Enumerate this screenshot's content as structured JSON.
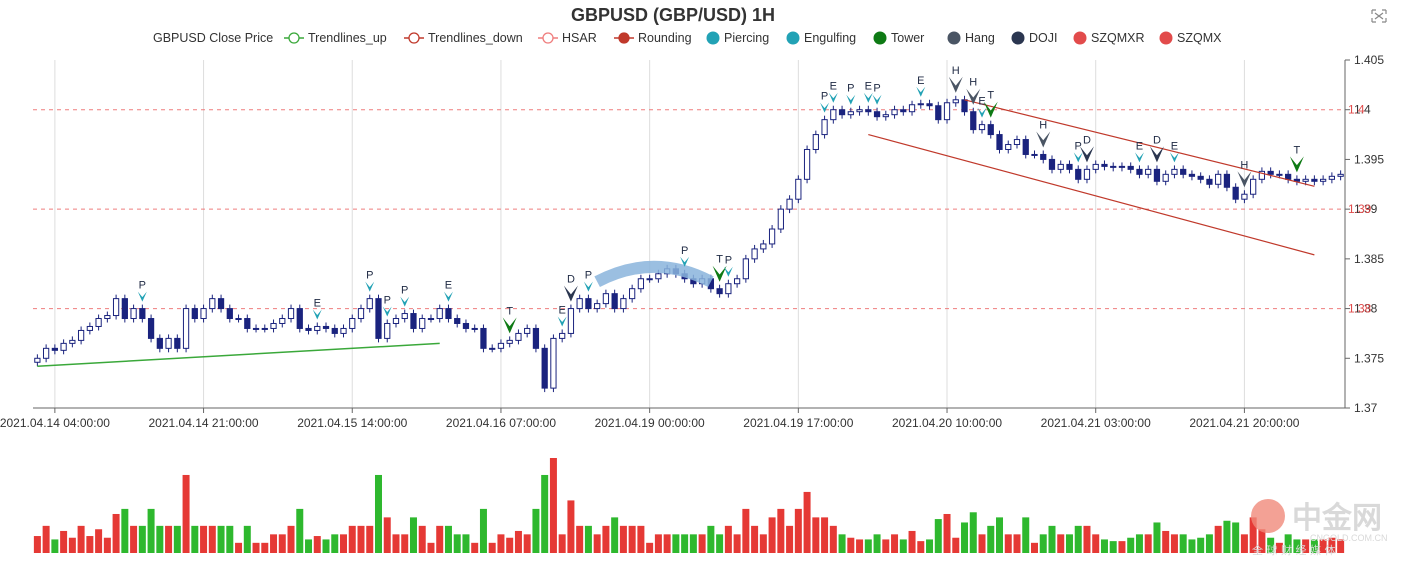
{
  "chart_data": {
    "type": "candlestick",
    "title": "GBPUSD (GBP/USD) 1H",
    "legend": {
      "placement": "top-center",
      "items": [
        {
          "label": "GBPUSD Close Price",
          "symbol": "none",
          "color": "#333333"
        },
        {
          "label": "Trendlines_up",
          "symbol": "line-circle",
          "color": "#3aa83a"
        },
        {
          "label": "Trendlines_down",
          "symbol": "line-circle",
          "color": "#c0392b"
        },
        {
          "label": "HSAR",
          "symbol": "line-circle",
          "color": "#ef7d7d"
        },
        {
          "label": "Rounding",
          "symbol": "line-dot",
          "color": "#c0392b"
        },
        {
          "label": "Piercing",
          "symbol": "dot",
          "color": "#22a2b5"
        },
        {
          "label": "Engulfing",
          "symbol": "dot",
          "color": "#22a2b5"
        },
        {
          "label": "Tower",
          "symbol": "dot",
          "color": "#0e7a14"
        },
        {
          "label": "Hang",
          "symbol": "dot",
          "color": "#4a5564"
        },
        {
          "label": "DOJI",
          "symbol": "dot",
          "color": "#2b3650"
        },
        {
          "label": "SZQMXR",
          "symbol": "dot",
          "color": "#e24b4b"
        },
        {
          "label": "SZQMX",
          "symbol": "dot",
          "color": "#e24b4b"
        }
      ]
    },
    "x_tick_labels": [
      "2021.04.14 04:00:00",
      "2021.04.14 21:00:00",
      "2021.04.15 14:00:00",
      "2021.04.16 07:00:00",
      "2021.04.19 00:00:00",
      "2021.04.19 17:00:00",
      "2021.04.20 10:00:00",
      "2021.04.21 03:00:00",
      "2021.04.21 20:00:00"
    ],
    "x_tick_index": [
      2,
      19,
      36,
      53,
      70,
      87,
      104,
      121,
      138
    ],
    "y_axis": {
      "min": 1.37,
      "max": 1.405,
      "position": "right",
      "ticks": [
        "1.37",
        "1.375",
        "1.38",
        "1.385",
        "1.39",
        "1.395",
        "1.4",
        "1.405"
      ]
    },
    "grid": "vertical",
    "hsar_levels": [
      {
        "value": 1.38,
        "label": "1.38"
      },
      {
        "value": 1.39,
        "label": "1.39"
      },
      {
        "value": 1.4,
        "label": "1.4"
      }
    ],
    "trendline_up": [
      {
        "i": 0,
        "v": 1.3742
      },
      {
        "i": 46,
        "v": 1.3765
      }
    ],
    "trendline_down": [
      {
        "from": {
          "i": 106,
          "v": 1.401
        },
        "to": {
          "i": 146,
          "v": 1.3923
        }
      },
      {
        "from": {
          "i": 95,
          "v": 1.3975
        },
        "to": {
          "i": 146,
          "v": 1.3854
        }
      }
    ],
    "rounding_arc": {
      "from_i": 64,
      "to_i": 77,
      "base": 1.3827,
      "peak": 1.3842
    },
    "close": [
      1.375,
      1.376,
      1.3758,
      1.3765,
      1.3768,
      1.3778,
      1.3782,
      1.379,
      1.3793,
      1.381,
      1.379,
      1.38,
      1.379,
      1.377,
      1.376,
      1.377,
      1.376,
      1.38,
      1.379,
      1.38,
      1.381,
      1.38,
      1.379,
      1.379,
      1.378,
      1.378,
      1.378,
      1.3785,
      1.379,
      1.38,
      1.378,
      1.3778,
      1.3782,
      1.378,
      1.3775,
      1.378,
      1.379,
      1.38,
      1.381,
      1.377,
      1.3785,
      1.379,
      1.3795,
      1.378,
      1.379,
      1.379,
      1.38,
      1.379,
      1.3785,
      1.378,
      1.378,
      1.376,
      1.376,
      1.3765,
      1.3768,
      1.3775,
      1.378,
      1.376,
      1.372,
      1.377,
      1.3775,
      1.38,
      1.381,
      1.38,
      1.3805,
      1.3815,
      1.38,
      1.381,
      1.382,
      1.383,
      1.383,
      1.3835,
      1.384,
      1.3835,
      1.383,
      1.3825,
      1.383,
      1.382,
      1.3815,
      1.3825,
      1.383,
      1.385,
      1.386,
      1.3865,
      1.388,
      1.39,
      1.391,
      1.393,
      1.396,
      1.3975,
      1.399,
      1.4,
      1.3995,
      1.3998,
      1.4,
      1.3998,
      1.3993,
      1.3995,
      1.4,
      1.3998,
      1.4005,
      1.4006,
      1.4004,
      1.399,
      1.4007,
      1.401,
      1.3998,
      1.398,
      1.3985,
      1.3975,
      1.396,
      1.3965,
      1.397,
      1.3955,
      1.3955,
      1.395,
      1.394,
      1.3945,
      1.394,
      1.393,
      1.394,
      1.3945,
      1.3943,
      1.3942,
      1.3943,
      1.394,
      1.3935,
      1.394,
      1.3928,
      1.3935,
      1.394,
      1.3935,
      1.3933,
      1.393,
      1.3925,
      1.3935,
      1.3922,
      1.391,
      1.3915,
      1.393,
      1.3938,
      1.3935,
      1.3935,
      1.393,
      1.3928,
      1.393,
      1.3928,
      1.393,
      1.3933,
      1.3935
    ],
    "markers": [
      {
        "i": 12,
        "label": "P",
        "type": "Piercing"
      },
      {
        "i": 32,
        "label": "E",
        "type": "Engulfing"
      },
      {
        "i": 38,
        "label": "P",
        "type": "Piercing"
      },
      {
        "i": 40,
        "label": "P",
        "type": "Piercing"
      },
      {
        "i": 42,
        "label": "P",
        "type": "Piercing"
      },
      {
        "i": 47,
        "label": "E",
        "type": "Engulfing"
      },
      {
        "i": 54,
        "label": "T",
        "type": "Tower"
      },
      {
        "i": 60,
        "label": "E",
        "type": "Engulfing"
      },
      {
        "i": 61,
        "label": "D",
        "type": "DOJI"
      },
      {
        "i": 63,
        "label": "P",
        "type": "Piercing"
      },
      {
        "i": 74,
        "label": "P",
        "type": "Piercing"
      },
      {
        "i": 78,
        "label": "T",
        "type": "Tower"
      },
      {
        "i": 79,
        "label": "P",
        "type": "Piercing"
      },
      {
        "i": 90,
        "label": "P",
        "type": "Piercing"
      },
      {
        "i": 91,
        "label": "E",
        "type": "Engulfing"
      },
      {
        "i": 93,
        "label": "P",
        "type": "Piercing"
      },
      {
        "i": 95,
        "label": "E",
        "type": "Engulfing"
      },
      {
        "i": 96,
        "label": "P",
        "type": "Piercing"
      },
      {
        "i": 101,
        "label": "E",
        "type": "Engulfing"
      },
      {
        "i": 105,
        "label": "H",
        "type": "Hang"
      },
      {
        "i": 107,
        "label": "H",
        "type": "Hang"
      },
      {
        "i": 108,
        "label": "E",
        "type": "Engulfing"
      },
      {
        "i": 109,
        "label": "T",
        "type": "Tower"
      },
      {
        "i": 115,
        "label": "H",
        "type": "Hang"
      },
      {
        "i": 119,
        "label": "P",
        "type": "Piercing"
      },
      {
        "i": 120,
        "label": "D",
        "type": "DOJI"
      },
      {
        "i": 126,
        "label": "E",
        "type": "Engulfing"
      },
      {
        "i": 128,
        "label": "D",
        "type": "DOJI"
      },
      {
        "i": 130,
        "label": "E",
        "type": "Engulfing"
      },
      {
        "i": 138,
        "label": "H",
        "type": "Hang"
      },
      {
        "i": 144,
        "label": "T",
        "type": "Tower"
      }
    ]
  },
  "colors": {
    "candle_up": "#ffffff",
    "candle_down": "#1a237e",
    "candle_border": "#1a237e",
    "volume_up": "#e53935",
    "volume_down": "#2eb82e",
    "grid": "#dddddd",
    "hsar": "#ef7d7d",
    "trend_up": "#3aa83a",
    "trend_down": "#c0392b",
    "rounding": "#8ab4dc"
  },
  "toolbox_icon": "fullscreen-icon",
  "watermark": {
    "cn": "中金网",
    "en": "CNGOLD.COM.CN",
    "sub": "全 球 财 经 媒 体"
  }
}
